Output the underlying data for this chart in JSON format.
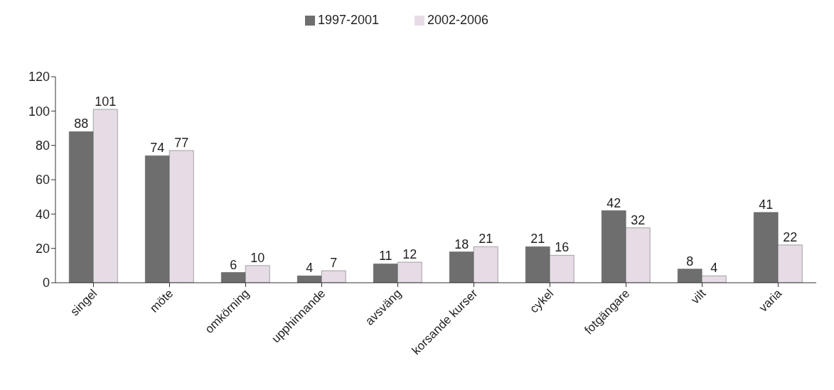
{
  "chart_data": {
    "type": "bar",
    "categories": [
      "singel",
      "möte",
      "omkörning",
      "upphinnande",
      "avsväng",
      "korsande kurser",
      "cykel",
      "fotgängare",
      "vilt",
      "varia"
    ],
    "series": [
      {
        "name": "1997-2001",
        "color": "#6e6e6e",
        "values": [
          88,
          74,
          6,
          4,
          11,
          18,
          21,
          42,
          8,
          41
        ]
      },
      {
        "name": "2002-2006",
        "color": "#e6dce6",
        "values": [
          101,
          77,
          10,
          7,
          12,
          21,
          16,
          32,
          4,
          22
        ]
      }
    ],
    "ylim": [
      0,
      120
    ],
    "yticks": [
      0,
      20,
      40,
      60,
      80,
      100,
      120
    ],
    "grid": false,
    "legend": "top",
    "data_labels": true
  }
}
